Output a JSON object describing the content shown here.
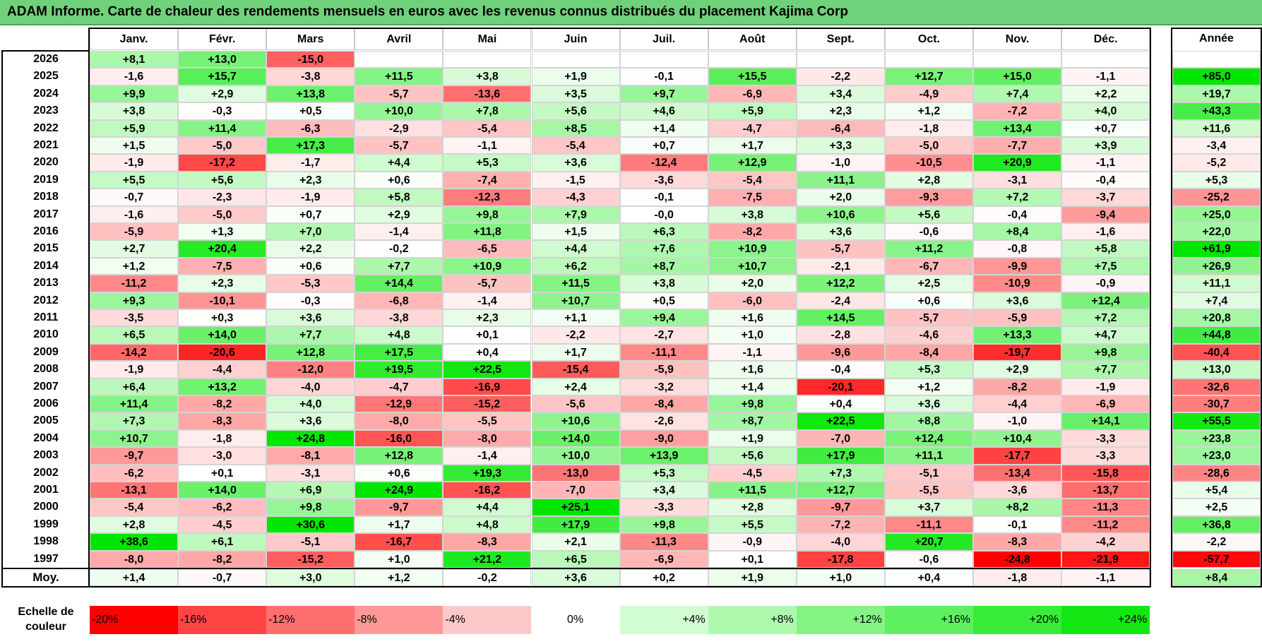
{
  "title": "ADAM Informe. Carte de chaleur des rendements mensuels en euros avec les revenus connus distribués du placement Kajima Corp",
  "chart_data": {
    "type": "heatmap",
    "title": "ADAM Informe. Carte de chaleur des rendements mensuels en euros avec les revenus connus distribués du placement Kajima Corp",
    "columns": [
      "Janv.",
      "Févr.",
      "Mars",
      "Avril",
      "Mai",
      "Juin",
      "Juil.",
      "Août",
      "Sept.",
      "Oct.",
      "Nov.",
      "Déc."
    ],
    "year_column_label": "Année",
    "rows": [
      {
        "year": "2026",
        "values": [
          "+8,1",
          "+13,0",
          "-15,0",
          "",
          "",
          "",
          "",
          "",
          "",
          "",
          "",
          ""
        ],
        "annual": ""
      },
      {
        "year": "2025",
        "values": [
          "-1,6",
          "+15,7",
          "-3,8",
          "+11,5",
          "+3,8",
          "+1,9",
          "-0,1",
          "+15,5",
          "-2,2",
          "+12,7",
          "+15,0",
          "-1,1"
        ],
        "annual": "+85,0"
      },
      {
        "year": "2024",
        "values": [
          "+9,9",
          "+2,9",
          "+13,8",
          "-5,7",
          "-13,6",
          "+3,5",
          "+9,7",
          "-6,9",
          "+3,4",
          "-4,9",
          "+7,4",
          "+2,2"
        ],
        "annual": "+19,7"
      },
      {
        "year": "2023",
        "values": [
          "+3,8",
          "-0,3",
          "+0,5",
          "+10,0",
          "+7,8",
          "+5,6",
          "+4,6",
          "+5,9",
          "+2,3",
          "+1,2",
          "-7,2",
          "+4,0"
        ],
        "annual": "+43,3"
      },
      {
        "year": "2022",
        "values": [
          "+5,9",
          "+11,4",
          "-6,3",
          "-2,9",
          "-5,4",
          "+8,5",
          "+1,4",
          "-4,7",
          "-6,4",
          "-1,8",
          "+13,4",
          "+0,7"
        ],
        "annual": "+11,6"
      },
      {
        "year": "2021",
        "values": [
          "+1,5",
          "-5,0",
          "+17,3",
          "-5,7",
          "-1,1",
          "-5,4",
          "+0,7",
          "+1,7",
          "+3,3",
          "-5,0",
          "-7,7",
          "+3,9"
        ],
        "annual": "-3,4"
      },
      {
        "year": "2020",
        "values": [
          "-1,9",
          "-17,2",
          "-1,7",
          "+4,4",
          "+5,3",
          "+3,6",
          "-12,4",
          "+12,9",
          "-1,0",
          "-10,5",
          "+20,9",
          "-1,1"
        ],
        "annual": "-5,2"
      },
      {
        "year": "2019",
        "values": [
          "+5,5",
          "+5,6",
          "+2,3",
          "+0,6",
          "-7,4",
          "-1,5",
          "-3,6",
          "-5,4",
          "+11,1",
          "+2,8",
          "-3,1",
          "-0,4"
        ],
        "annual": "+5,3"
      },
      {
        "year": "2018",
        "values": [
          "-0,7",
          "-2,3",
          "-1,9",
          "+5,8",
          "-12,3",
          "-4,3",
          "-0,1",
          "-7,5",
          "+2,0",
          "-9,3",
          "+7,2",
          "-3,7"
        ],
        "annual": "-25,2"
      },
      {
        "year": "2017",
        "values": [
          "-1,6",
          "-5,0",
          "+0,7",
          "+2,9",
          "+9,8",
          "+7,9",
          "-0,0",
          "+3,8",
          "+10,6",
          "+5,6",
          "-0,4",
          "-9,4"
        ],
        "annual": "+25,0"
      },
      {
        "year": "2016",
        "values": [
          "-5,9",
          "+1,3",
          "+7,0",
          "-1,4",
          "+11,8",
          "+1,5",
          "+6,3",
          "-8,2",
          "+3,6",
          "-0,6",
          "+8,4",
          "-1,6"
        ],
        "annual": "+22,0"
      },
      {
        "year": "2015",
        "values": [
          "+2,7",
          "+20,4",
          "+2,2",
          "-0,2",
          "-6,5",
          "+4,4",
          "+7,6",
          "+10,9",
          "-5,7",
          "+11,2",
          "-0,8",
          "+5,8"
        ],
        "annual": "+61,9"
      },
      {
        "year": "2014",
        "values": [
          "+1,2",
          "-7,5",
          "+0,6",
          "+7,7",
          "+10,9",
          "+6,2",
          "+8,7",
          "+10,7",
          "-2,1",
          "-6,7",
          "-9,9",
          "+7,5"
        ],
        "annual": "+26,9"
      },
      {
        "year": "2013",
        "values": [
          "-11,2",
          "+2,3",
          "-5,3",
          "+14,4",
          "-5,7",
          "+11,5",
          "+3,8",
          "+2,0",
          "+12,2",
          "+2,5",
          "-10,9",
          "-0,9"
        ],
        "annual": "+11,1"
      },
      {
        "year": "2012",
        "values": [
          "+9,3",
          "-10,1",
          "-0,3",
          "-6,8",
          "-1,4",
          "+10,7",
          "+0,5",
          "-6,0",
          "-2,4",
          "+0,6",
          "+3,6",
          "+12,4"
        ],
        "annual": "+7,4"
      },
      {
        "year": "2011",
        "values": [
          "-3,5",
          "+0,3",
          "+3,6",
          "-3,8",
          "+2,3",
          "+1,1",
          "+9,4",
          "+1,6",
          "+14,5",
          "-5,7",
          "-5,9",
          "+7,2"
        ],
        "annual": "+20,8"
      },
      {
        "year": "2010",
        "values": [
          "+6,5",
          "+14,0",
          "+7,7",
          "+4,8",
          "+0,1",
          "-2,2",
          "-2,7",
          "+1,0",
          "-2,8",
          "-4,6",
          "+13,3",
          "+4,7"
        ],
        "annual": "+44,8"
      },
      {
        "year": "2009",
        "values": [
          "-14,2",
          "-20,6",
          "+12,8",
          "+17,5",
          "+0,4",
          "+1,7",
          "-11,1",
          "-1,1",
          "-9,6",
          "-8,4",
          "-19,7",
          "+9,8"
        ],
        "annual": "-40,4"
      },
      {
        "year": "2008",
        "values": [
          "-1,9",
          "-4,4",
          "-12,0",
          "+19,5",
          "+22,5",
          "-15,4",
          "-5,9",
          "+1,6",
          "-0,4",
          "+5,3",
          "+2,9",
          "+7,7"
        ],
        "annual": "+13,0"
      },
      {
        "year": "2007",
        "values": [
          "+6,4",
          "+13,2",
          "-4,0",
          "-4,7",
          "-16,9",
          "+2,4",
          "-3,2",
          "+1,4",
          "-20,1",
          "+1,2",
          "-8,2",
          "-1,9"
        ],
        "annual": "-32,6"
      },
      {
        "year": "2006",
        "values": [
          "+11,4",
          "-8,2",
          "+4,0",
          "-12,9",
          "-15,2",
          "-5,6",
          "-8,4",
          "+9,8",
          "+0,4",
          "+3,6",
          "-4,4",
          "-6,9"
        ],
        "annual": "-30,7"
      },
      {
        "year": "2005",
        "values": [
          "+7,3",
          "-8,3",
          "+3,6",
          "-8,0",
          "-5,5",
          "+10,6",
          "-2,6",
          "+8,7",
          "+22,5",
          "+8,8",
          "-1,0",
          "+14,1"
        ],
        "annual": "+55,5"
      },
      {
        "year": "2004",
        "values": [
          "+10,7",
          "-1,8",
          "+24,8",
          "-16,0",
          "-8,0",
          "+14,0",
          "-9,0",
          "+1,9",
          "-7,0",
          "+12,4",
          "+10,4",
          "-3,3"
        ],
        "annual": "+23,8"
      },
      {
        "year": "2003",
        "values": [
          "-9,7",
          "-3,0",
          "-8,1",
          "+12,8",
          "-1,4",
          "+10,0",
          "+13,9",
          "+5,6",
          "+17,9",
          "+11,1",
          "-17,7",
          "-3,3"
        ],
        "annual": "+23,0"
      },
      {
        "year": "2002",
        "values": [
          "-6,2",
          "+0,1",
          "-3,1",
          "+0,6",
          "+19,3",
          "-13,0",
          "+5,3",
          "-4,5",
          "+7,3",
          "-5,1",
          "-13,4",
          "-15,8"
        ],
        "annual": "-28,6"
      },
      {
        "year": "2001",
        "values": [
          "-13,1",
          "+14,0",
          "+6,9",
          "+24,9",
          "-16,2",
          "-7,0",
          "+3,4",
          "+11,5",
          "+12,7",
          "-5,5",
          "-3,6",
          "-13,7"
        ],
        "annual": "+5,4"
      },
      {
        "year": "2000",
        "values": [
          "-5,4",
          "-6,2",
          "+9,8",
          "-9,7",
          "+4,4",
          "+25,1",
          "-3,3",
          "+2,8",
          "-9,7",
          "+3,7",
          "+8,2",
          "-11,3"
        ],
        "annual": "+2,5"
      },
      {
        "year": "1999",
        "values": [
          "+2,8",
          "-4,5",
          "+30,6",
          "+1,7",
          "+4,8",
          "+17,9",
          "+9,8",
          "+5,5",
          "-7,2",
          "-11,1",
          "-0,1",
          "-11,2"
        ],
        "annual": "+36,8"
      },
      {
        "year": "1998",
        "values": [
          "+38,6",
          "+6,1",
          "-5,1",
          "-16,7",
          "-8,3",
          "+2,1",
          "-11,3",
          "-0,9",
          "-4,0",
          "+20,7",
          "-8,3",
          "-4,2"
        ],
        "annual": "-2,2"
      },
      {
        "year": "1997",
        "values": [
          "-8,0",
          "-8,2",
          "-15,2",
          "+1,0",
          "+21,2",
          "+6,5",
          "-6,9",
          "+0,1",
          "-17,8",
          "-0,6",
          "-24,8",
          "-21,9"
        ],
        "annual": "-57,7"
      }
    ],
    "average": {
      "label": "Moy.",
      "values": [
        "+1,4",
        "-0,7",
        "+3,0",
        "+1,2",
        "-0,2",
        "+3,6",
        "+0,2",
        "+1,9",
        "+1,0",
        "+0,4",
        "-1,8",
        "-1,1"
      ],
      "annual": "+8,4"
    },
    "scale": {
      "label": "Echelle de couleur",
      "labels": [
        "-20%",
        "-16%",
        "-12%",
        "-8%",
        "-4%",
        "0%",
        "+4%",
        "+8%",
        "+12%",
        "+16%",
        "+20%",
        "+24%"
      ],
      "values": [
        -20,
        -16,
        -12,
        -8,
        -4,
        0,
        4,
        8,
        12,
        16,
        20,
        24
      ],
      "colors": [
        "#ff0000",
        "#ff4444",
        "#ff6e6e",
        "#ff9898",
        "#ffc8c8",
        "#ffffff",
        "#d2fcd2",
        "#aef8ae",
        "#84f484",
        "#5ef05e",
        "#38ec38",
        "#14e614"
      ]
    },
    "colors": {
      "positive_max": "#00e400",
      "negative_max": "#ff0000",
      "neutral": "#ffffff",
      "title_background": "#6fd27a"
    }
  }
}
